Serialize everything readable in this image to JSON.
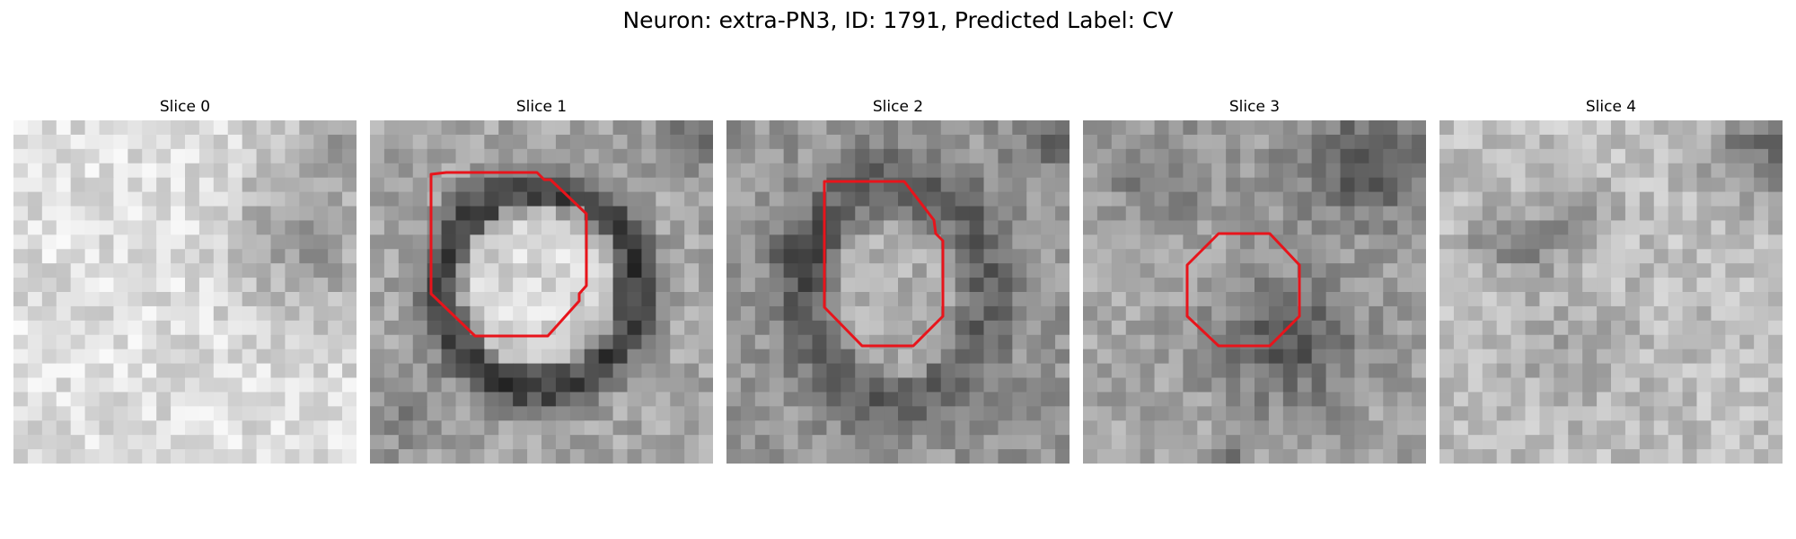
{
  "figure": {
    "title": "Neuron: extra-PN3, ID: 1791, Predicted Label: CV",
    "contour_color": "#e8141b"
  },
  "panels": [
    {
      "title": "Slice 0",
      "has_contour": false,
      "description": "light gray textured patch, darker region at upper right"
    },
    {
      "title": "Slice 1",
      "has_contour": true,
      "description": "bright oval body ringed by dark membrane, outlined in red"
    },
    {
      "title": "Slice 2",
      "has_contour": true,
      "description": "mid-gray body with faint dark boundary, outlined in red"
    },
    {
      "title": "Slice 3",
      "has_contour": true,
      "description": "small darker body in lower center, outlined in red"
    },
    {
      "title": "Slice 4",
      "has_contour": false,
      "description": "mottled gray patch with dark streak upper left and dark corner upper right"
    }
  ]
}
